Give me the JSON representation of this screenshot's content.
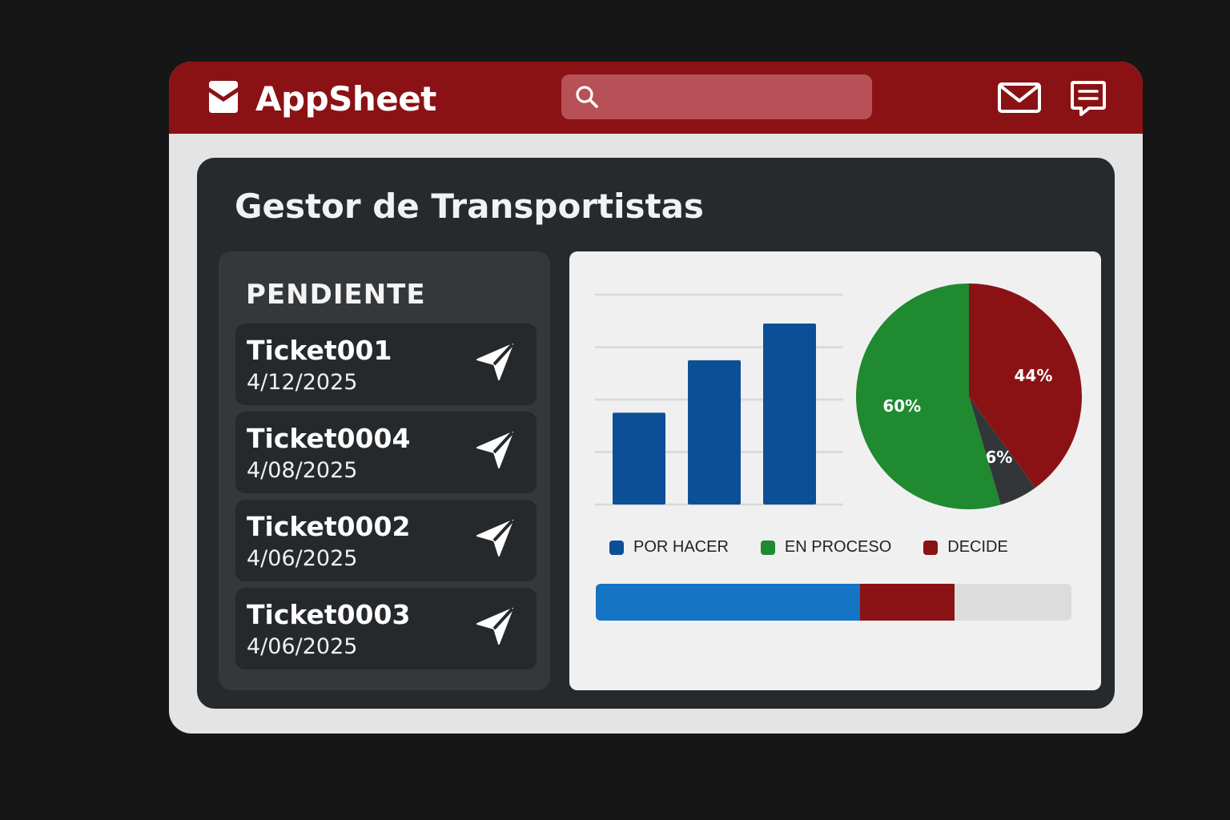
{
  "app": {
    "name": "AppSheet",
    "brand_color": "#8b1214",
    "logo_icon": "appsheet-logo-icon"
  },
  "header": {
    "search_placeholder": "",
    "icons": [
      "search-icon",
      "mail-icon",
      "message-icon"
    ]
  },
  "page": {
    "title": "Gestor de Transportistas"
  },
  "pending": {
    "heading": "PENDIENTE",
    "action_icon": "send-icon",
    "tickets": [
      {
        "name": "Ticket001",
        "date": "4/12/2025"
      },
      {
        "name": "Ticket0004",
        "date": "4/08/2025"
      },
      {
        "name": "Ticket0002",
        "date": "4/06/2025"
      },
      {
        "name": "Ticket0003",
        "date": "4/06/2025"
      }
    ]
  },
  "chart_data": [
    {
      "type": "bar",
      "categories": [
        "",
        "",
        ""
      ],
      "values": [
        35,
        55,
        69
      ],
      "ylim": [
        0,
        80
      ],
      "grid": true,
      "color": "#0d4f96"
    },
    {
      "type": "pie",
      "slices": [
        {
          "label": "44%",
          "value": 44,
          "color": "#8b1214"
        },
        {
          "label": "6%",
          "value": 6,
          "color": "#333639"
        },
        {
          "label": "60%",
          "value": 60,
          "color": "#1f8a30"
        }
      ]
    }
  ],
  "legend": [
    {
      "label": "POR HACER",
      "color": "#0d4f96"
    },
    {
      "label": "EN PROCESO",
      "color": "#1f8a30"
    },
    {
      "label": "DECIDE",
      "color": "#8b1214"
    }
  ],
  "progress": {
    "segments": [
      {
        "fraction": 0.555,
        "color": "#1674c4"
      },
      {
        "fraction": 0.2,
        "color": "#8b1214"
      }
    ],
    "track_color": "#dcdcdc"
  }
}
